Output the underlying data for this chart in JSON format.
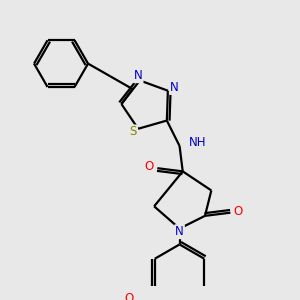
{
  "bg_color": "#e8e8e8",
  "line_color": "#000000",
  "bond_lw": 1.6,
  "atom_colors": {
    "N": "#0000cc",
    "O": "#ff0000",
    "S": "#888800",
    "H": "#008888",
    "C": "#000000"
  },
  "font_size": 8.5,
  "fig_bg": "#e8e8e8"
}
